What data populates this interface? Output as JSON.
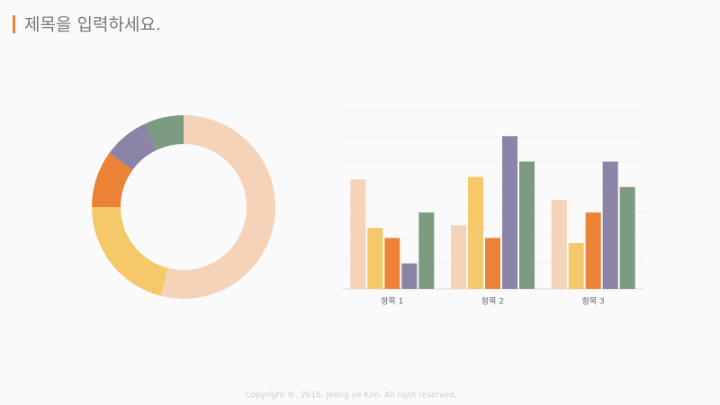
{
  "slide": {
    "title": "제목을 입력하세요.",
    "footer": "Copyright ©. 2016. Jeong ye Kim. All right reserved."
  },
  "chart_data": [
    {
      "type": "donut",
      "values": [
        54,
        21,
        10,
        8,
        7
      ],
      "colors": [
        "#f5d3b8",
        "#f5c96a",
        "#ec8236",
        "#8a85a6",
        "#7d9b80"
      ]
    },
    {
      "type": "bar",
      "categories": [
        "항목 1",
        "항목 2",
        "항목 3"
      ],
      "series": [
        {
          "color": "#f5d3b8",
          "values": [
            4.3,
            2.5,
            3.5
          ]
        },
        {
          "color": "#f5c96a",
          "values": [
            2.4,
            4.4,
            1.8
          ]
        },
        {
          "color": "#ec8236",
          "values": [
            2.0,
            2.0,
            3.0
          ]
        },
        {
          "color": "#8a85a6",
          "values": [
            1.0,
            6.0,
            5.0
          ]
        },
        {
          "color": "#7d9b80",
          "values": [
            3.0,
            5.0,
            4.0
          ]
        }
      ],
      "ylim": [
        0,
        7
      ],
      "yticks": [
        0,
        1,
        2,
        3,
        4,
        5,
        6,
        7
      ],
      "grid": true
    }
  ]
}
